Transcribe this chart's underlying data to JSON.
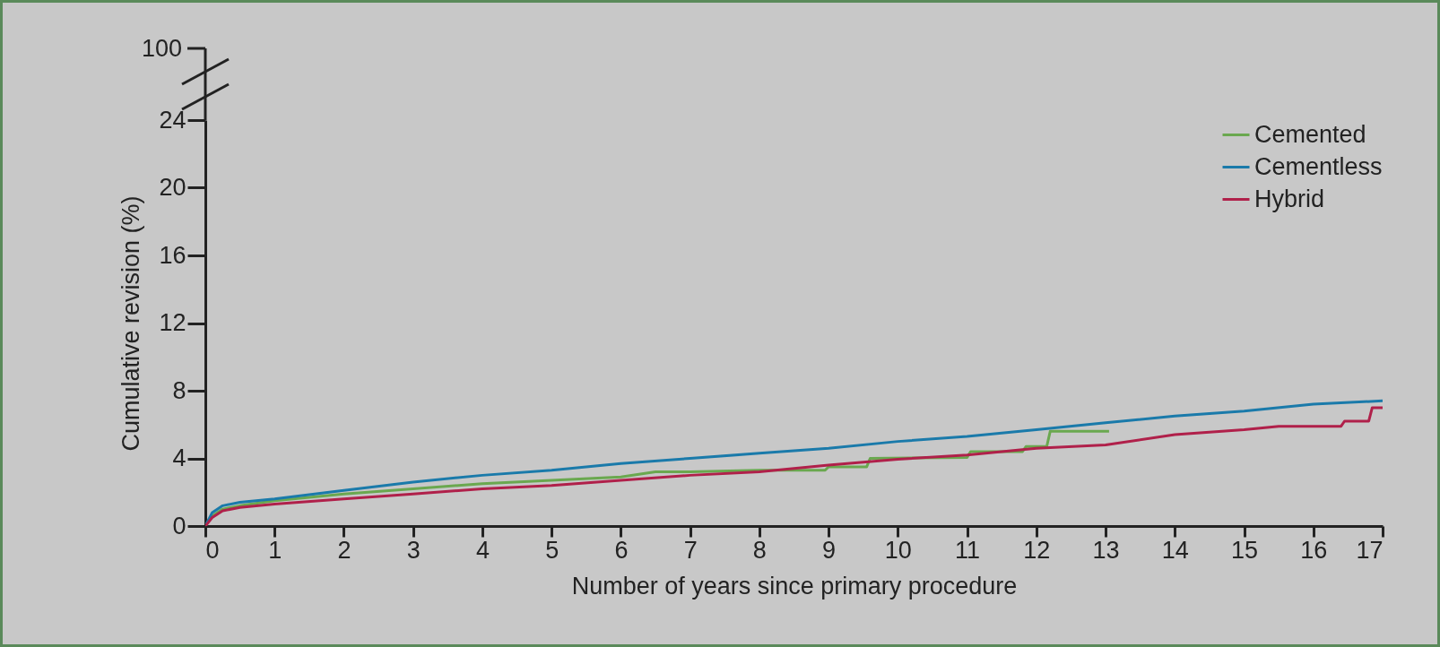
{
  "chart_data": {
    "type": "line",
    "xlabel": "Number of years since primary procedure",
    "ylabel": "Cumulative revision (%)",
    "xlim": [
      0,
      17
    ],
    "xticks": [
      0,
      1,
      2,
      3,
      4,
      5,
      6,
      7,
      8,
      9,
      10,
      11,
      12,
      13,
      14,
      15,
      16,
      17
    ],
    "ylim": [
      0,
      24
    ],
    "yticks": [
      0,
      4,
      8,
      12,
      16,
      20,
      24
    ],
    "annotations": [
      "100"
    ],
    "grid": false,
    "legend": "top right",
    "series": [
      {
        "name": "Cemented",
        "color": "#6aa84f",
        "x": [
          0,
          0.1,
          0.25,
          0.5,
          1,
          2,
          3,
          4,
          5,
          6,
          6.5,
          7,
          8,
          8.95,
          9.0,
          9.55,
          9.6,
          11.0,
          11.05,
          11.8,
          11.85,
          12.15,
          12.2,
          13.05
        ],
        "values": [
          0,
          0.6,
          1.0,
          1.2,
          1.5,
          1.9,
          2.2,
          2.5,
          2.7,
          2.9,
          3.2,
          3.2,
          3.3,
          3.3,
          3.5,
          3.5,
          4.0,
          4.05,
          4.4,
          4.4,
          4.7,
          4.7,
          5.6,
          5.6
        ]
      },
      {
        "name": "Cementless",
        "color": "#1a7aaa",
        "x": [
          0,
          0.1,
          0.25,
          0.5,
          1,
          2,
          3,
          4,
          5,
          6,
          7,
          8,
          9,
          10,
          11,
          12,
          13,
          14,
          15,
          16,
          17
        ],
        "values": [
          0,
          0.8,
          1.2,
          1.4,
          1.6,
          2.1,
          2.6,
          3.0,
          3.3,
          3.7,
          4.0,
          4.3,
          4.6,
          5.0,
          5.3,
          5.7,
          6.1,
          6.5,
          6.8,
          7.2,
          7.4
        ]
      },
      {
        "name": "Hybrid",
        "color": "#b0204a",
        "x": [
          0,
          0.1,
          0.25,
          0.5,
          1,
          2,
          3,
          4,
          5,
          6,
          7,
          8,
          9,
          10,
          11,
          12,
          13,
          14,
          15,
          15.5,
          16.4,
          16.45,
          16.8,
          16.85,
          17
        ],
        "values": [
          0,
          0.5,
          0.9,
          1.1,
          1.3,
          1.6,
          1.9,
          2.2,
          2.4,
          2.7,
          3.0,
          3.2,
          3.6,
          3.95,
          4.2,
          4.6,
          4.8,
          5.4,
          5.7,
          5.9,
          5.9,
          6.2,
          6.2,
          7.0,
          7.0
        ]
      }
    ]
  }
}
